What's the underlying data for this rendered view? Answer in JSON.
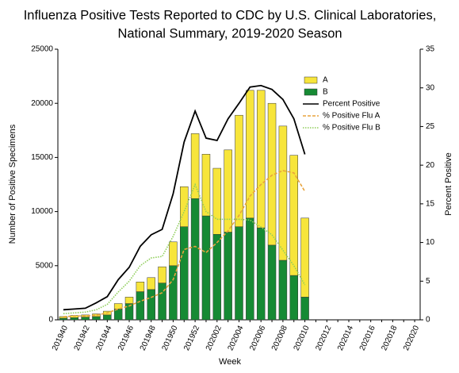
{
  "chart_data": {
    "type": "bar",
    "stacked": true,
    "title_lines": [
      "Influenza Positive Tests Reported to CDC by U.S. Clinical Laboratories,",
      "National Summary, 2019-2020 Season"
    ],
    "x_label": "Week",
    "y_label": "Number of Positive Specimens",
    "y2_label": "Percent Positive",
    "categories": [
      "201940",
      null,
      "201942",
      null,
      "201944",
      null,
      "201946",
      null,
      "201948",
      null,
      "201950",
      null,
      "201952",
      null,
      "202002",
      null,
      "202004",
      null,
      "202006",
      null,
      "202008",
      null,
      "202010",
      null,
      "202012",
      null,
      "202014",
      null,
      "202016",
      null,
      "202018",
      null,
      "202020"
    ],
    "ylim": [
      0,
      25000
    ],
    "yticks": [
      0,
      5000,
      10000,
      15000,
      20000,
      25000
    ],
    "y2lim": [
      0,
      35
    ],
    "y2ticks": [
      0,
      5,
      10,
      15,
      20,
      25,
      30,
      35
    ],
    "legend": "upper right",
    "series": [
      {
        "name": "B",
        "type": "bar",
        "color": "#168a34",
        "values": [
          150,
          200,
          250,
          300,
          450,
          1000,
          1500,
          2600,
          2800,
          3400,
          5000,
          8600,
          11200,
          9600,
          7900,
          8100,
          8600,
          9400,
          8500,
          6900,
          5500,
          4100,
          2100,
          null,
          null,
          null,
          null,
          null,
          null,
          null,
          null,
          null,
          null
        ]
      },
      {
        "name": "A",
        "type": "bar",
        "color": "#f7e53b",
        "values": [
          150,
          200,
          200,
          250,
          350,
          500,
          600,
          900,
          1100,
          1500,
          2200,
          3700,
          6000,
          5700,
          6100,
          7600,
          10300,
          11800,
          12700,
          13100,
          12400,
          11100,
          7300,
          null,
          null,
          null,
          null,
          null,
          null,
          null,
          null,
          null,
          null
        ]
      },
      {
        "name": "Percent Positive",
        "type": "line",
        "axis": "y2",
        "color": "#000000",
        "dash": "solid",
        "values": [
          1.3,
          1.4,
          1.5,
          2.2,
          3,
          5.2,
          6.8,
          9.5,
          11,
          11.7,
          16.3,
          23,
          27,
          23.5,
          23.2,
          26,
          28,
          30.1,
          30.3,
          29.8,
          28.5,
          26,
          21.4,
          null,
          null,
          null,
          null,
          null,
          null,
          null,
          null,
          null,
          null
        ]
      },
      {
        "name": "% Positive Flu A",
        "type": "line",
        "axis": "y2",
        "color": "#e8a33d",
        "dash": "dashed",
        "values": [
          0.4,
          0.5,
          0.5,
          0.6,
          0.9,
          1.4,
          1.8,
          2.4,
          2.9,
          3.5,
          5.2,
          9.1,
          9.5,
          8.7,
          10,
          11.5,
          13.5,
          16,
          17.5,
          18.7,
          19.3,
          19,
          16.6,
          null,
          null,
          null,
          null,
          null,
          null,
          null,
          null,
          null,
          null
        ]
      },
      {
        "name": "% Positive Flu B",
        "type": "line",
        "axis": "y2",
        "color": "#8fce5a",
        "dash": "dotted",
        "values": [
          0.8,
          0.9,
          1,
          1.3,
          2,
          3.6,
          5,
          7,
          8,
          8.2,
          10.8,
          14,
          17.5,
          14,
          13,
          13,
          13,
          12.9,
          12,
          11,
          9,
          7,
          4.5,
          null,
          null,
          null,
          null,
          null,
          null,
          null,
          null,
          null,
          null
        ]
      }
    ]
  }
}
